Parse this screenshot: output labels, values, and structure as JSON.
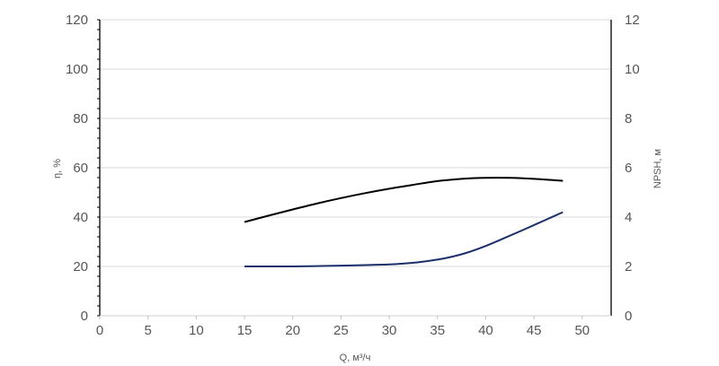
{
  "chart_data": {
    "type": "line",
    "title": "",
    "xlabel": "Q, м³/ч",
    "ylabel": "η, %",
    "y2label": "NPSH, м",
    "xlim": [
      0,
      53
    ],
    "ylim": [
      0,
      120
    ],
    "y2lim": [
      0,
      12
    ],
    "x_ticks": [
      "0",
      "5",
      "10",
      "15",
      "20",
      "25",
      "30",
      "35",
      "40",
      "45",
      "50"
    ],
    "y_ticks": [
      "0",
      "20",
      "40",
      "60",
      "80",
      "100",
      "120"
    ],
    "y2_ticks": [
      "0",
      "2",
      "4",
      "6",
      "8",
      "10",
      "12"
    ],
    "grid": "horizontal",
    "legend": "none",
    "series": [
      {
        "axis": "left",
        "color": "#000000",
        "x": [
          15,
          17.5,
          20,
          22.5,
          25,
          27.5,
          30,
          32.5,
          35,
          37.5,
          40,
          42.5,
          45,
          48
        ],
        "y": [
          38,
          40.6,
          43.1,
          45.5,
          47.7,
          49.7,
          51.5,
          53.1,
          54.6,
          55.5,
          55.9,
          55.9,
          55.5,
          54.7
        ]
      },
      {
        "axis": "right",
        "color": "#1b2f6b",
        "x": [
          15,
          20,
          25,
          28,
          30,
          32,
          34,
          36,
          38,
          40,
          42,
          44,
          46,
          48
        ],
        "y": [
          2.0,
          2.0,
          2.03,
          2.06,
          2.08,
          2.13,
          2.22,
          2.35,
          2.55,
          2.83,
          3.16,
          3.5,
          3.85,
          4.2
        ]
      }
    ]
  }
}
